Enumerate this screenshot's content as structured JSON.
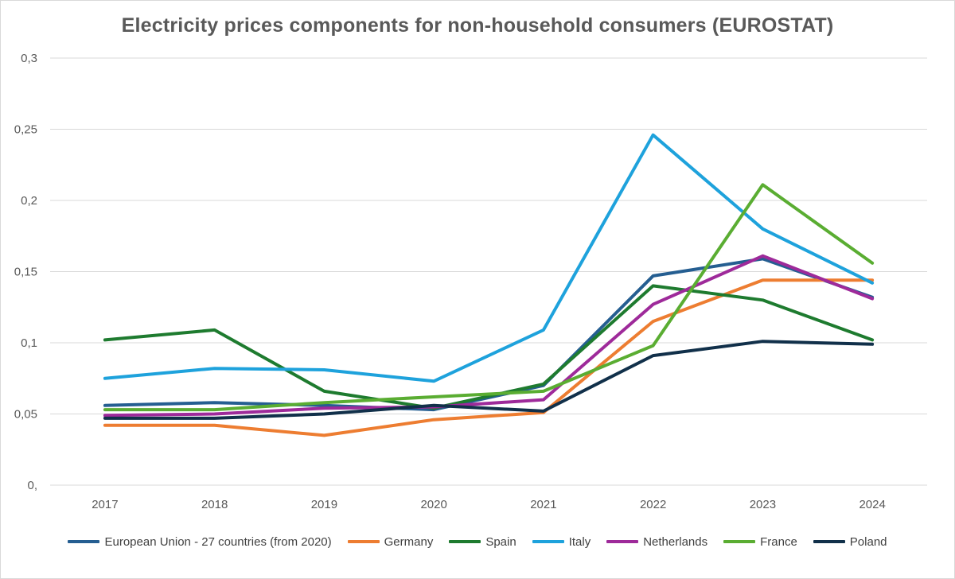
{
  "chart_data": {
    "type": "line",
    "title": "Electricity prices components for non-household consumers (EUROSTAT)",
    "xlabel": "",
    "ylabel": "",
    "categories": [
      "2017",
      "2018",
      "2019",
      "2020",
      "2021",
      "2022",
      "2023",
      "2024"
    ],
    "ylim": [
      0,
      0.3
    ],
    "yticks": [
      0,
      0.05,
      0.1,
      0.15,
      0.2,
      0.25,
      0.3
    ],
    "ytick_labels": [
      "0,",
      "0,05",
      "0,1",
      "0,15",
      "0,2",
      "0,25",
      "0,3"
    ],
    "grid": true,
    "legend_position": "bottom",
    "series": [
      {
        "name": "European Union - 27 countries (from 2020)",
        "color": "#255e91",
        "values": [
          0.056,
          0.058,
          0.056,
          0.053,
          0.07,
          0.147,
          0.159,
          0.132
        ]
      },
      {
        "name": "Germany",
        "color": "#ed7d31",
        "values": [
          0.042,
          0.042,
          0.035,
          0.046,
          0.051,
          0.115,
          0.144,
          0.144
        ]
      },
      {
        "name": "Spain",
        "color": "#1e7b2f",
        "values": [
          0.102,
          0.109,
          0.066,
          0.054,
          0.071,
          0.14,
          0.13,
          0.102
        ]
      },
      {
        "name": "Italy",
        "color": "#1ea2dc",
        "values": [
          0.075,
          0.082,
          0.081,
          0.073,
          0.109,
          0.246,
          0.18,
          0.142
        ]
      },
      {
        "name": "Netherlands",
        "color": "#9e2a9a",
        "values": [
          0.049,
          0.05,
          0.054,
          0.055,
          0.06,
          0.127,
          0.161,
          0.131
        ]
      },
      {
        "name": "France",
        "color": "#5aad32",
        "values": [
          0.053,
          0.053,
          0.058,
          0.062,
          0.066,
          0.098,
          0.211,
          0.156
        ]
      },
      {
        "name": "Poland",
        "color": "#11304a",
        "values": [
          0.047,
          0.047,
          0.05,
          0.056,
          0.052,
          0.091,
          0.101,
          0.099
        ]
      }
    ]
  }
}
